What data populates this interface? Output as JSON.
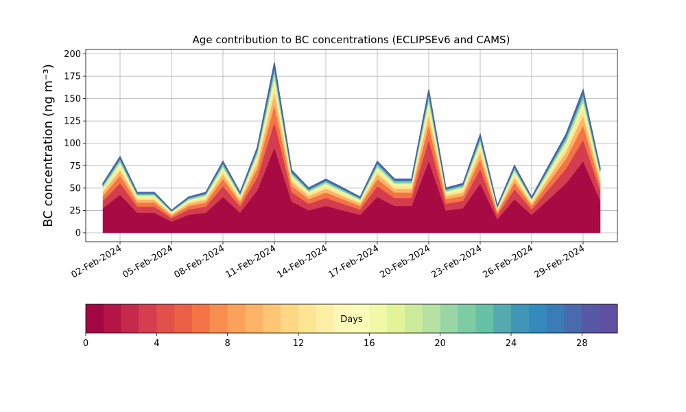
{
  "chart_data": {
    "type": "stacked_area",
    "title": "Age contribution to BC concentrations (ECLIPSEv6 and CAMS)",
    "ylabel": "BC concentration (ng m⁻³)",
    "x": [
      "2024-02-01",
      "2024-02-02",
      "2024-02-03",
      "2024-02-04",
      "2024-02-05",
      "2024-02-06",
      "2024-02-07",
      "2024-02-08",
      "2024-02-09",
      "2024-02-10",
      "2024-02-11",
      "2024-02-12",
      "2024-02-13",
      "2024-02-14",
      "2024-02-15",
      "2024-02-16",
      "2024-02-17",
      "2024-02-18",
      "2024-02-19",
      "2024-02-20",
      "2024-02-21",
      "2024-02-22",
      "2024-02-23",
      "2024-02-24",
      "2024-02-25",
      "2024-02-26",
      "2024-02-27",
      "2024-02-28",
      "2024-02-29",
      "2024-03-01"
    ],
    "series": [
      {
        "color": "#a80b44",
        "values": [
          27.5,
          42.5,
          22.5,
          22.5,
          12.5,
          20,
          22.5,
          40,
          22.5,
          47.5,
          95,
          35,
          25,
          30,
          25,
          20,
          40,
          30,
          30,
          80,
          25,
          27.5,
          55,
          15,
          37.5,
          20,
          37.5,
          55,
          80,
          36
        ]
      },
      {
        "color": "#d43d4f",
        "values": [
          8.3,
          12.8,
          6.8,
          6.8,
          3.8,
          6,
          6.8,
          12,
          6.8,
          14.3,
          28.5,
          10.5,
          7.5,
          9,
          7.5,
          6,
          12,
          9,
          9,
          24,
          7.5,
          8.3,
          16.5,
          4.5,
          11.3,
          6,
          11.3,
          16.5,
          24,
          10.8
        ]
      },
      {
        "color": "#f57446",
        "values": [
          5.5,
          8.5,
          4.5,
          4.5,
          2.5,
          4,
          4.5,
          8,
          4.5,
          9.5,
          19,
          7,
          5,
          6,
          5,
          4,
          8,
          6,
          6,
          16,
          5,
          5.5,
          11,
          3,
          7.5,
          4,
          7.5,
          11,
          16,
          7.2
        ]
      },
      {
        "color": "#fdb466",
        "values": [
          3.9,
          6,
          3.2,
          3.2,
          1.8,
          2.8,
          3.2,
          5.6,
          3.2,
          6.7,
          13.3,
          4.9,
          3.5,
          4.2,
          3.5,
          2.8,
          5.6,
          4.2,
          4.2,
          11.2,
          3.5,
          3.9,
          7.7,
          2.1,
          5.3,
          2.8,
          5.3,
          7.7,
          11.2,
          5
        ]
      },
      {
        "color": "#fee593",
        "values": [
          2.8,
          4.3,
          2.3,
          2.3,
          1.3,
          2,
          2.3,
          4,
          2.3,
          4.8,
          9.5,
          3.5,
          2.5,
          3,
          2.5,
          2,
          4,
          3,
          3,
          8,
          2.5,
          2.8,
          5.5,
          1.5,
          3.8,
          2,
          3.8,
          5.5,
          8,
          3.6
        ]
      },
      {
        "color": "#f0f9a8",
        "values": [
          2.2,
          3.4,
          1.8,
          1.8,
          1,
          1.6,
          1.8,
          3.2,
          1.8,
          3.8,
          7.6,
          2.8,
          2,
          2.4,
          2,
          1.6,
          3.2,
          2.4,
          2.4,
          6.4,
          2,
          2.2,
          4.4,
          1.2,
          3,
          1.6,
          3,
          4.4,
          6.4,
          2.9
        ]
      },
      {
        "color": "#b5e1a2",
        "values": [
          1.7,
          2.6,
          1.4,
          1.4,
          0.8,
          1.2,
          1.4,
          2.4,
          1.4,
          2.9,
          5.7,
          2.1,
          1.5,
          1.8,
          1.5,
          1.2,
          2.4,
          1.8,
          1.8,
          4.8,
          1.5,
          1.7,
          3.3,
          0.9,
          2.3,
          1.2,
          2.3,
          3.3,
          4.8,
          2.2
        ]
      },
      {
        "color": "#66c2a5",
        "values": [
          1.4,
          2.1,
          1.1,
          1.1,
          0.6,
          1,
          1.1,
          2,
          1.1,
          2.4,
          4.8,
          1.8,
          1.3,
          1.5,
          1.3,
          1,
          2,
          1.5,
          1.5,
          4,
          1.3,
          1.4,
          2.8,
          0.8,
          1.9,
          1,
          1.9,
          2.8,
          4,
          1.8
        ]
      },
      {
        "color": "#3489bd",
        "values": [
          1.1,
          1.7,
          0.9,
          0.9,
          0.5,
          0.8,
          0.9,
          1.6,
          0.9,
          1.9,
          3.8,
          1.4,
          1,
          1.2,
          1,
          0.8,
          1.6,
          1.2,
          1.2,
          3.2,
          1,
          1.1,
          2.2,
          0.6,
          1.5,
          0.8,
          1.5,
          2.2,
          3.2,
          1.4
        ]
      },
      {
        "color": "#4a62ab",
        "values": [
          0.8,
          1.3,
          0.7,
          0.7,
          0.4,
          0.6,
          0.7,
          1.2,
          0.7,
          1.4,
          2.9,
          1.1,
          0.8,
          0.9,
          0.8,
          0.6,
          1.2,
          0.9,
          0.9,
          2.4,
          0.8,
          0.8,
          1.7,
          0.5,
          1.1,
          0.6,
          1.1,
          1.7,
          2.4,
          1.1
        ]
      }
    ],
    "xlim": [
      "2024-01-31",
      "2024-03-02"
    ],
    "xticks": [
      {
        "value": "2024-02-02",
        "label": "02-Feb-2024"
      },
      {
        "value": "2024-02-05",
        "label": "05-Feb-2024"
      },
      {
        "value": "2024-02-08",
        "label": "08-Feb-2024"
      },
      {
        "value": "2024-02-11",
        "label": "11-Feb-2024"
      },
      {
        "value": "2024-02-14",
        "label": "14-Feb-2024"
      },
      {
        "value": "2024-02-17",
        "label": "17-Feb-2024"
      },
      {
        "value": "2024-02-20",
        "label": "20-Feb-2024"
      },
      {
        "value": "2024-02-23",
        "label": "23-Feb-2024"
      },
      {
        "value": "2024-02-26",
        "label": "26-Feb-2024"
      },
      {
        "value": "2024-02-29",
        "label": "29-Feb-2024"
      }
    ],
    "ylim": [
      -10,
      205
    ],
    "yticks": [
      0,
      25,
      50,
      75,
      100,
      125,
      150,
      175,
      200
    ],
    "grid": true,
    "colorbar": {
      "label": "Days",
      "lim": [
        0,
        30
      ],
      "ticks": [
        0,
        4,
        8,
        12,
        16,
        20,
        24,
        28
      ],
      "colors": [
        "#a20643",
        "#b41546",
        "#c52a4b",
        "#d53e4f",
        "#e1514a",
        "#ec6145",
        "#f57446",
        "#f88d52",
        "#faa15b",
        "#fdb466",
        "#fdc676",
        "#fed785",
        "#fee593",
        "#feeea6",
        "#fff7b8",
        "#fbfdba",
        "#f0f9a8",
        "#e2f398",
        "#cdeb9d",
        "#b5e1a2",
        "#9ad5a4",
        "#7ecba4",
        "#66c2a5",
        "#55aaaf",
        "#3f96b7",
        "#3489bd",
        "#3a7cb8",
        "#4a6aae",
        "#5659a5",
        "#5e4fa2"
      ]
    }
  }
}
